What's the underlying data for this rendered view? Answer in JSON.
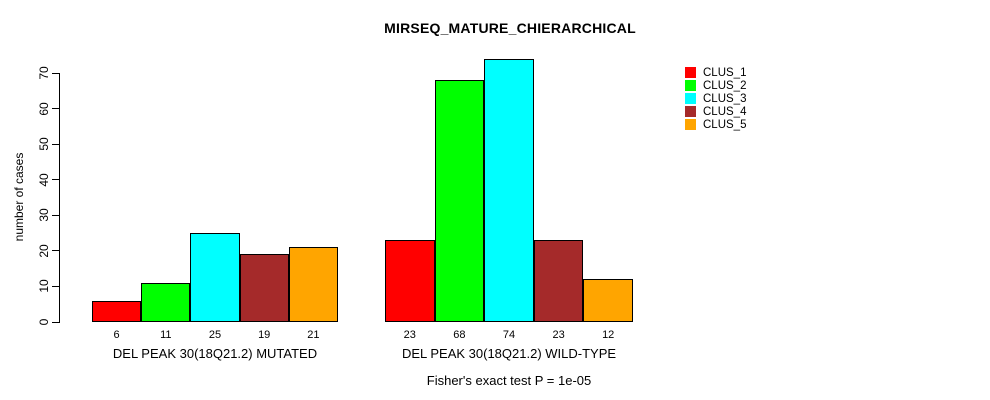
{
  "chart_data": {
    "type": "bar",
    "title": "MIRSEQ_MATURE_CHIERARCHICAL",
    "ylabel": "number of cases",
    "xlabel": "",
    "ylim": [
      0,
      70
    ],
    "yticks": [
      0,
      10,
      20,
      30,
      40,
      50,
      60,
      70
    ],
    "grid": false,
    "bar_value_labels_shown": true,
    "legend_position": "right",
    "series": [
      {
        "name": "CLUS_1",
        "color": "#FF0000"
      },
      {
        "name": "CLUS_2",
        "color": "#00FF00"
      },
      {
        "name": "CLUS_3",
        "color": "#00FFFF"
      },
      {
        "name": "CLUS_4",
        "color": "#A52A2A"
      },
      {
        "name": "CLUS_5",
        "color": "#FFA500"
      }
    ],
    "groups": [
      {
        "label": "DEL PEAK 30(18Q21.2) MUTATED",
        "values": [
          6,
          11,
          25,
          19,
          21
        ]
      },
      {
        "label": "DEL PEAK 30(18Q21.2) WILD-TYPE",
        "values": [
          23,
          68,
          74,
          23,
          12
        ]
      }
    ],
    "annotation": "Fisher's exact test P = 1e-05"
  }
}
